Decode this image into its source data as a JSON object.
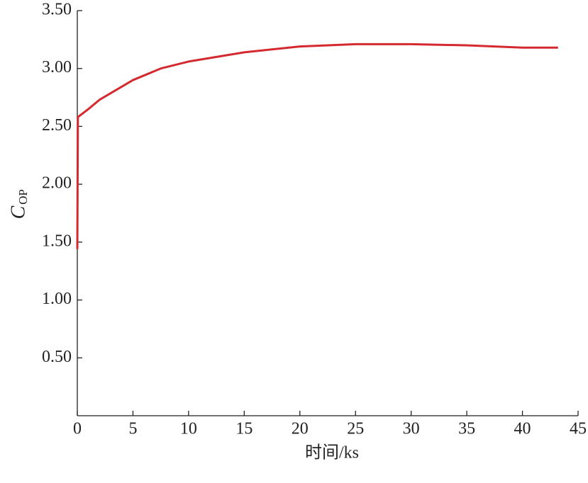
{
  "chart_data": {
    "type": "line",
    "xlabel": "时间/ks",
    "ylabel": {
      "main": "C",
      "sub": "OP"
    },
    "x": [
      0,
      0.05,
      1,
      2,
      5,
      7.5,
      10,
      15,
      20,
      25,
      30,
      35,
      40,
      43.2
    ],
    "series": [
      {
        "color": "#d42a2f",
        "values": [
          1.44,
          2.58,
          2.65,
          2.73,
          2.9,
          3.0,
          3.06,
          3.14,
          3.19,
          3.21,
          3.21,
          3.2,
          3.18,
          3.18
        ]
      }
    ],
    "xlim": [
      0,
      45
    ],
    "ylim": [
      0,
      3.5
    ],
    "xticks": [
      0,
      5,
      10,
      15,
      20,
      25,
      30,
      35,
      40,
      45
    ],
    "yticks": [
      {
        "value": 0.5,
        "label": "0.50"
      },
      {
        "value": 1.0,
        "label": "1.00"
      },
      {
        "value": 1.5,
        "label": "1.50"
      },
      {
        "value": 2.0,
        "label": "2.00"
      },
      {
        "value": 2.5,
        "label": "2.50"
      },
      {
        "value": 3.0,
        "label": "3.00"
      },
      {
        "value": 3.5,
        "label": "3.50"
      }
    ]
  }
}
